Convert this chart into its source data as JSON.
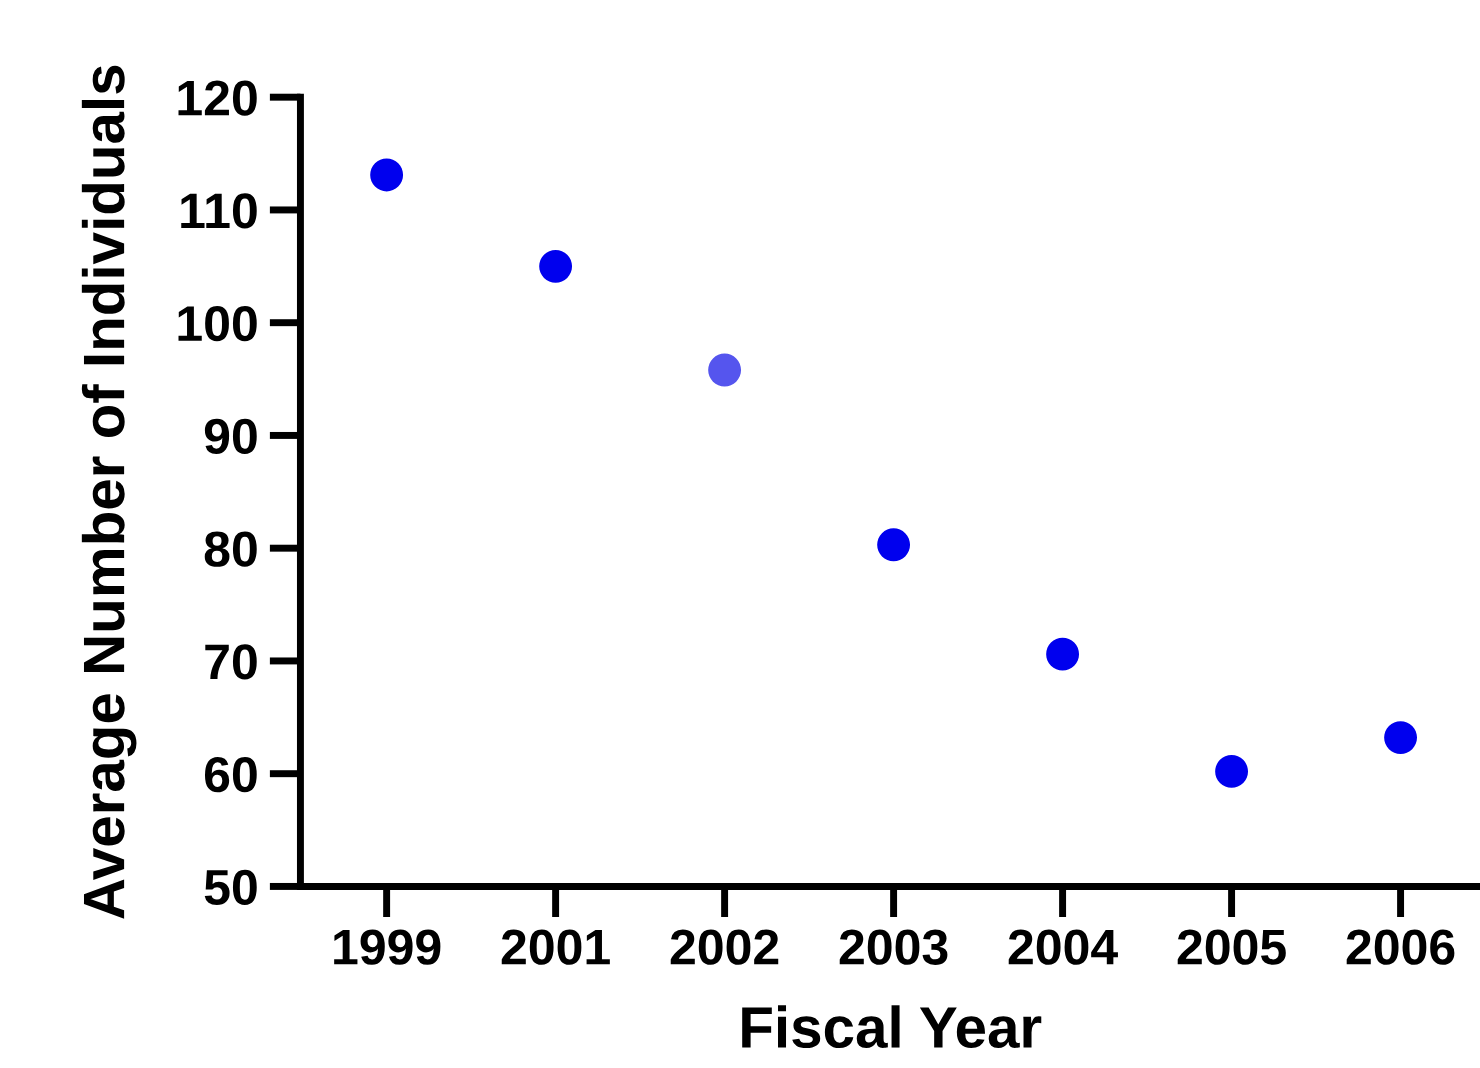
{
  "chart_data": {
    "type": "scatter",
    "xlabel": "Fiscal Year",
    "ylabel": "Average Number of Individuals",
    "categories": [
      "1999",
      "2001",
      "2002",
      "2003",
      "2004",
      "2005",
      "2006"
    ],
    "values": [
      113.1,
      105.0,
      95.8,
      80.3,
      70.6,
      60.2,
      63.2
    ],
    "colors": [
      "#0000ee",
      "#0000ee",
      "#5555ee",
      "#0000ee",
      "#0000ee",
      "#0000ee",
      "#0000ee"
    ],
    "marker": "circle",
    "ylim": [
      50,
      120
    ],
    "yticks": [
      50,
      60,
      70,
      80,
      90,
      100,
      110,
      120
    ],
    "grid": false,
    "legend": false
  }
}
